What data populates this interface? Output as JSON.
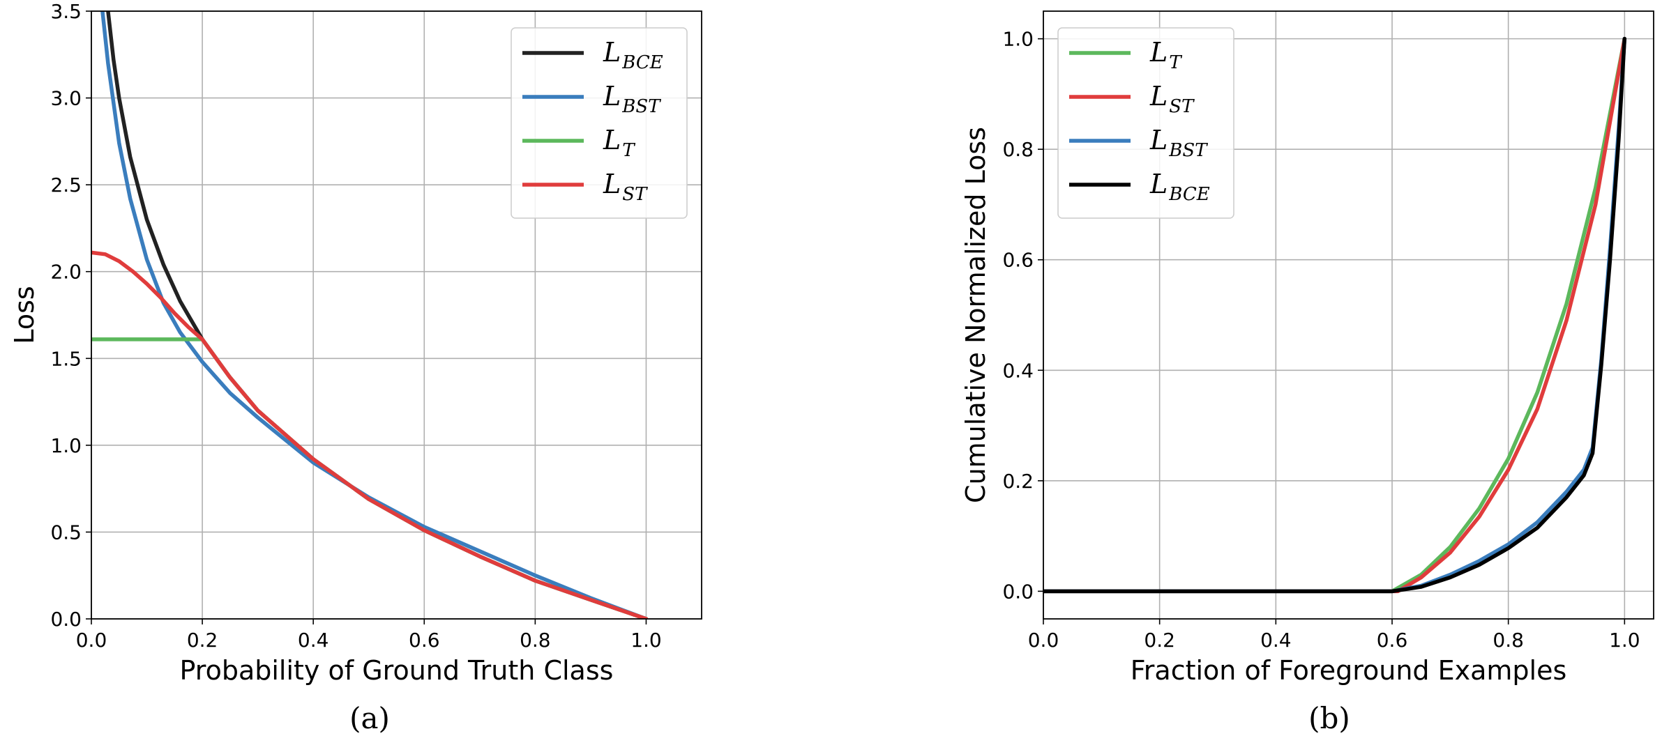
{
  "chart_data": [
    {
      "type": "line",
      "caption": "(a)",
      "xlabel": "Probability of Ground Truth Class",
      "ylabel": "Loss",
      "xlim": [
        0.0,
        1.1
      ],
      "ylim": [
        0.0,
        3.5
      ],
      "xticks": [
        "0.0",
        "0.2",
        "0.4",
        "0.6",
        "0.8",
        "1.0"
      ],
      "yticks": [
        "0.0",
        "0.5",
        "1.0",
        "1.5",
        "2.0",
        "2.5",
        "3.0",
        "3.5"
      ],
      "grid": true,
      "legend_position": "top-right",
      "series": [
        {
          "name": "L",
          "sub": "BCE",
          "color": "#222222",
          "x": [
            0.03,
            0.04,
            0.05,
            0.07,
            0.1,
            0.13,
            0.16,
            0.2,
            0.25,
            0.3,
            0.4,
            0.5,
            0.6,
            0.7,
            0.8,
            0.9,
            1.0
          ],
          "y": [
            3.5,
            3.22,
            3.0,
            2.66,
            2.3,
            2.04,
            1.83,
            1.61,
            1.39,
            1.2,
            0.92,
            0.69,
            0.51,
            0.36,
            0.22,
            0.11,
            0.0
          ]
        },
        {
          "name": "L",
          "sub": "BST",
          "color": "#3a7dbd",
          "x": [
            0.02,
            0.03,
            0.05,
            0.07,
            0.1,
            0.13,
            0.16,
            0.2,
            0.25,
            0.3,
            0.4,
            0.5,
            0.6,
            0.7,
            0.8,
            0.9,
            1.0
          ],
          "y": [
            3.5,
            3.2,
            2.74,
            2.42,
            2.07,
            1.82,
            1.65,
            1.48,
            1.3,
            1.16,
            0.9,
            0.7,
            0.53,
            0.39,
            0.25,
            0.12,
            0.0
          ]
        },
        {
          "name": "L",
          "sub": "T",
          "color": "#5cb85c",
          "x": [
            0.0,
            0.05,
            0.1,
            0.15,
            0.2,
            0.25,
            0.3,
            0.4,
            0.5,
            0.6,
            0.7,
            0.8,
            0.9,
            1.0
          ],
          "y": [
            1.61,
            1.61,
            1.61,
            1.61,
            1.61,
            1.39,
            1.2,
            0.92,
            0.69,
            0.51,
            0.36,
            0.22,
            0.11,
            0.0
          ]
        },
        {
          "name": "L",
          "sub": "ST",
          "color": "#e03c3c",
          "x": [
            0.0,
            0.025,
            0.05,
            0.075,
            0.1,
            0.125,
            0.15,
            0.175,
            0.2,
            0.25,
            0.3,
            0.4,
            0.5,
            0.6,
            0.7,
            0.8,
            0.9,
            1.0
          ],
          "y": [
            2.11,
            2.1,
            2.06,
            2.0,
            1.93,
            1.85,
            1.76,
            1.68,
            1.61,
            1.39,
            1.2,
            0.92,
            0.69,
            0.51,
            0.36,
            0.22,
            0.11,
            0.0
          ]
        }
      ]
    },
    {
      "type": "line",
      "caption": "(b)",
      "xlabel": "Fraction of Foreground Examples",
      "ylabel": "Cumulative Normalized Loss",
      "xlim": [
        0.0,
        1.05
      ],
      "ylim": [
        -0.05,
        1.05
      ],
      "xticks": [
        "0.0",
        "0.2",
        "0.4",
        "0.6",
        "0.8",
        "1.0"
      ],
      "yticks": [
        "0.0",
        "0.2",
        "0.4",
        "0.6",
        "0.8",
        "1.0"
      ],
      "grid": true,
      "legend_position": "top-left",
      "series": [
        {
          "name": "L",
          "sub": "T",
          "color": "#5cb85c",
          "x": [
            0.0,
            0.6,
            0.65,
            0.7,
            0.75,
            0.8,
            0.85,
            0.9,
            0.95,
            1.0
          ],
          "y": [
            0.0,
            0.0,
            0.03,
            0.08,
            0.15,
            0.24,
            0.36,
            0.52,
            0.73,
            1.0
          ]
        },
        {
          "name": "L",
          "sub": "ST",
          "color": "#e03c3c",
          "x": [
            0.0,
            0.61,
            0.65,
            0.7,
            0.75,
            0.8,
            0.85,
            0.9,
            0.95,
            1.0
          ],
          "y": [
            0.0,
            0.0,
            0.025,
            0.07,
            0.135,
            0.22,
            0.33,
            0.49,
            0.7,
            1.0
          ]
        },
        {
          "name": "L",
          "sub": "BST",
          "color": "#3a7dbd",
          "x": [
            0.0,
            0.6,
            0.65,
            0.7,
            0.75,
            0.8,
            0.85,
            0.9,
            0.93,
            0.945,
            0.96,
            0.975,
            0.99,
            1.0
          ],
          "y": [
            0.0,
            0.0,
            0.01,
            0.03,
            0.055,
            0.085,
            0.125,
            0.18,
            0.22,
            0.26,
            0.42,
            0.62,
            0.84,
            1.0
          ]
        },
        {
          "name": "L",
          "sub": "BCE",
          "color": "#000000",
          "x": [
            0.0,
            0.6,
            0.65,
            0.7,
            0.75,
            0.8,
            0.85,
            0.9,
            0.93,
            0.945,
            0.96,
            0.975,
            0.99,
            1.0
          ],
          "y": [
            0.0,
            0.0,
            0.008,
            0.025,
            0.048,
            0.078,
            0.115,
            0.17,
            0.21,
            0.25,
            0.41,
            0.6,
            0.82,
            1.0
          ]
        }
      ]
    }
  ]
}
